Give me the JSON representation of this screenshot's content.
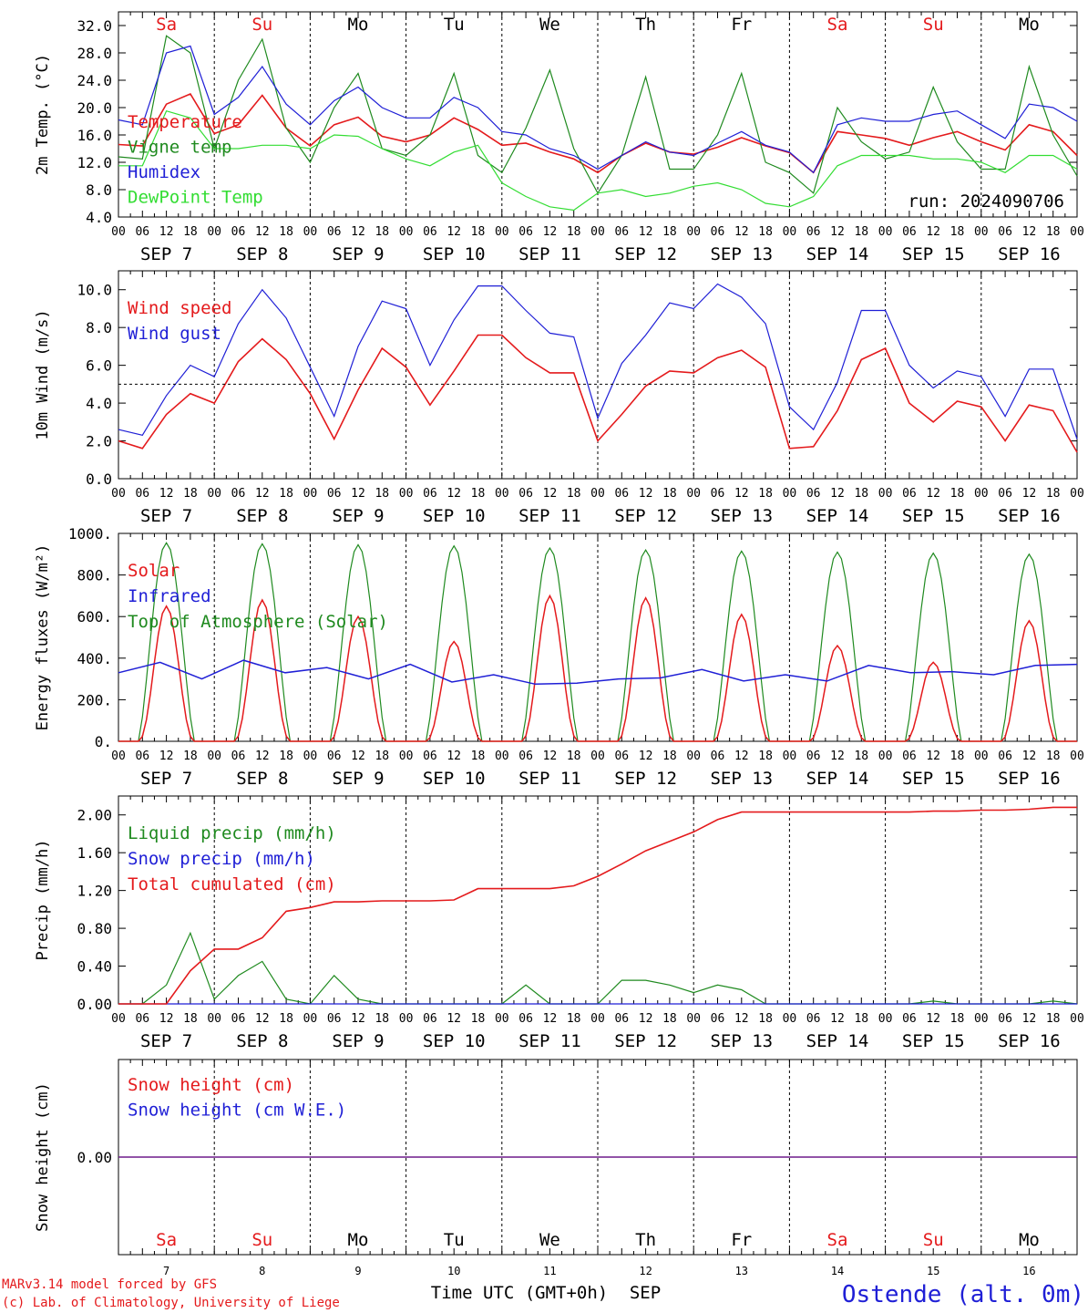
{
  "colors": {
    "red": "#e41a1c",
    "green": "#1f8a1f",
    "blue": "#1f1fd6",
    "lime": "#33dd33",
    "purple": "#8a2be2",
    "axis": "#000000"
  },
  "days": [
    "Sa",
    "Su",
    "Mo",
    "Tu",
    "We",
    "Th",
    "Fr",
    "Sa",
    "Su",
    "Mo"
  ],
  "weekend": [
    true,
    true,
    false,
    false,
    false,
    false,
    false,
    true,
    true,
    false
  ],
  "date_labels": [
    "SEP  7",
    "SEP  8",
    "SEP  9",
    "SEP 10",
    "SEP 11",
    "SEP 12",
    "SEP 13",
    "SEP 14",
    "SEP 15",
    "SEP 16"
  ],
  "day_numbers": [
    "7",
    "8",
    "9",
    "10",
    "11",
    "12",
    "13",
    "14",
    "15",
    "16"
  ],
  "hour_labels": [
    "00",
    "06",
    "12",
    "18"
  ],
  "run_label": "run: 2024090706",
  "x_title": "Time UTC (GMT+0h)",
  "month_label": "SEP",
  "credit_line1": "MARv3.14 model forced by GFS",
  "credit_line2": "(c) Lab. of Climatology, University of Liege",
  "station": "Ostende (alt. 0m)",
  "chart_data": [
    {
      "type": "line",
      "ylabel": "2m Temp. (°C)",
      "ylim": [
        4,
        34
      ],
      "yticks": [
        "32.0",
        "28.0",
        "24.0",
        "20.0",
        "16.0",
        "12.0",
        "8.0",
        "4.0"
      ],
      "x_hours": [
        0,
        6,
        12,
        18,
        24,
        30,
        36,
        42,
        48,
        54,
        60,
        66,
        72,
        78,
        84,
        90,
        96,
        102,
        108,
        114,
        120,
        126,
        132,
        138,
        144,
        150,
        156,
        162,
        168,
        174,
        180,
        186,
        192,
        198,
        204,
        210,
        216,
        222,
        228,
        234,
        240
      ],
      "series": [
        {
          "name": "Temperature",
          "color": "red",
          "values": [
            14.6,
            14.4,
            20.5,
            22.0,
            16.2,
            17.5,
            21.8,
            17.0,
            14.4,
            17.5,
            18.6,
            15.8,
            15.0,
            16.0,
            18.5,
            16.8,
            14.5,
            14.8,
            13.5,
            12.5,
            10.5,
            13.0,
            14.8,
            13.5,
            13.2,
            14.2,
            15.6,
            14.4,
            13.4,
            10.5,
            16.5,
            16.0,
            15.5,
            14.5,
            15.6,
            16.5,
            15.0,
            13.8,
            17.5,
            16.5,
            13.0
          ]
        },
        {
          "name": "Vigne temp",
          "color": "green",
          "values": [
            12.8,
            12.5,
            30.5,
            28.0,
            14.0,
            24.0,
            30.0,
            17.0,
            12.0,
            20.0,
            25.0,
            14.0,
            13.0,
            16.0,
            25.0,
            13.0,
            10.5,
            17.0,
            25.5,
            14.0,
            7.5,
            13.0,
            24.5,
            11.0,
            11.0,
            16.0,
            25.0,
            12.0,
            10.5,
            7.5,
            20.0,
            15.0,
            12.5,
            13.5,
            23.0,
            15.0,
            11.0,
            11.0,
            26.0,
            16.0,
            10.0
          ]
        },
        {
          "name": "Humidex",
          "color": "blue",
          "values": [
            18.2,
            17.5,
            28.0,
            29.0,
            19.0,
            21.5,
            26.0,
            20.5,
            17.5,
            21.0,
            23.0,
            20.0,
            18.5,
            18.5,
            21.5,
            20.0,
            16.5,
            16.0,
            14.0,
            13.0,
            11.0,
            13.0,
            15.0,
            13.5,
            13.0,
            14.8,
            16.5,
            14.5,
            13.5,
            10.5,
            17.5,
            18.5,
            18.0,
            18.0,
            19.0,
            19.5,
            17.5,
            15.5,
            20.5,
            20.0,
            18.0
          ]
        },
        {
          "name": "DewPoint Temp",
          "color": "lime",
          "values": [
            11.5,
            11.5,
            19.5,
            18.5,
            14.0,
            14.0,
            14.5,
            14.5,
            14.0,
            16.0,
            15.8,
            14.0,
            12.5,
            11.5,
            13.5,
            14.5,
            9.0,
            7.0,
            5.5,
            5.0,
            7.5,
            8.0,
            7.0,
            7.5,
            8.5,
            9.0,
            8.0,
            6.0,
            5.5,
            7.0,
            11.5,
            13.0,
            13.0,
            13.0,
            12.5,
            12.5,
            12.0,
            10.5,
            13.0,
            13.0,
            11.0
          ]
        }
      ]
    },
    {
      "type": "line",
      "ylabel": "10m Wind (m/s)",
      "ylim": [
        0,
        11
      ],
      "yticks": [
        "10.0",
        "8.0",
        "6.0",
        "4.0",
        "2.0",
        "0.0"
      ],
      "ref_line": 5,
      "x_hours": [
        0,
        6,
        12,
        18,
        24,
        30,
        36,
        42,
        48,
        54,
        60,
        66,
        72,
        78,
        84,
        90,
        96,
        102,
        108,
        114,
        120,
        126,
        132,
        138,
        144,
        150,
        156,
        162,
        168,
        174,
        180,
        186,
        192,
        198,
        204,
        210,
        216,
        222,
        228,
        234,
        240
      ],
      "series": [
        {
          "name": "Wind speed",
          "color": "red",
          "values": [
            2.0,
            1.6,
            3.4,
            4.5,
            4.0,
            6.2,
            7.4,
            6.3,
            4.5,
            2.1,
            4.7,
            6.9,
            5.9,
            3.9,
            5.7,
            7.6,
            7.6,
            6.4,
            5.6,
            5.6,
            2.0,
            3.4,
            4.9,
            5.7,
            5.6,
            6.4,
            6.8,
            5.9,
            1.6,
            1.7,
            3.6,
            6.3,
            6.9,
            4.0,
            3.0,
            4.1,
            3.8,
            2.0,
            3.9,
            3.6,
            1.4
          ]
        },
        {
          "name": "Wind gust",
          "color": "blue",
          "values": [
            2.6,
            2.3,
            4.4,
            6.0,
            5.4,
            8.2,
            10.0,
            8.5,
            5.9,
            3.3,
            7.0,
            9.4,
            9.0,
            6.0,
            8.4,
            10.2,
            10.2,
            8.9,
            7.7,
            7.5,
            3.2,
            6.1,
            7.6,
            9.3,
            9.0,
            10.3,
            9.6,
            8.2,
            3.8,
            2.6,
            5.1,
            8.9,
            8.9,
            6.0,
            4.8,
            5.7,
            5.4,
            3.3,
            5.8,
            5.8,
            2.1
          ]
        }
      ]
    },
    {
      "type": "line",
      "ylabel": "Energy fluxes (W/m²)",
      "ylim": [
        0,
        1000
      ],
      "yticks": [
        "1000.",
        "800.",
        "600.",
        "400.",
        "200.",
        "0."
      ],
      "sunrise_hour": 5,
      "sunset_hour": 19,
      "toa_peaks": [
        955,
        950,
        945,
        940,
        930,
        920,
        915,
        910,
        905,
        900
      ],
      "solar_peaks": [
        650,
        680,
        600,
        480,
        700,
        690,
        610,
        460,
        380,
        580
      ],
      "infrared": [
        330,
        380,
        300,
        390,
        330,
        355,
        300,
        370,
        285,
        320,
        275,
        280,
        300,
        305,
        345,
        290,
        320,
        290,
        365,
        330,
        335,
        320,
        365,
        370
      ],
      "series": [
        {
          "name": "Solar",
          "color": "red"
        },
        {
          "name": "Infrared",
          "color": "blue"
        },
        {
          "name": "Top of Atmosphere (Solar)",
          "color": "green"
        }
      ]
    },
    {
      "type": "line",
      "ylabel": "Precip (mm/h)",
      "ylim": [
        0,
        2.2
      ],
      "yticks": [
        "2.00",
        "1.60",
        "1.20",
        "0.80",
        "0.40",
        "0.00"
      ],
      "x_hours": [
        0,
        6,
        12,
        18,
        24,
        30,
        36,
        42,
        48,
        54,
        60,
        66,
        72,
        78,
        84,
        90,
        96,
        102,
        108,
        114,
        120,
        126,
        132,
        138,
        144,
        150,
        156,
        162,
        168,
        174,
        180,
        186,
        192,
        198,
        204,
        210,
        216,
        222,
        228,
        234,
        240
      ],
      "series": [
        {
          "name": "Liquid precip (mm/h)",
          "color": "green",
          "values": [
            0,
            0,
            0.2,
            0.75,
            0.05,
            0.3,
            0.45,
            0.05,
            0,
            0.3,
            0.05,
            0,
            0,
            0,
            0,
            0,
            0,
            0.2,
            0,
            0,
            0,
            0.25,
            0.25,
            0.2,
            0.12,
            0.2,
            0.15,
            0,
            0,
            0,
            0,
            0,
            0,
            0,
            0.03,
            0,
            0,
            0,
            0,
            0.03,
            0
          ]
        },
        {
          "name": "Snow precip (mm/h)",
          "color": "blue",
          "values": [
            0,
            0,
            0,
            0,
            0,
            0,
            0,
            0,
            0,
            0,
            0,
            0,
            0,
            0,
            0,
            0,
            0,
            0,
            0,
            0,
            0,
            0,
            0,
            0,
            0,
            0,
            0,
            0,
            0,
            0,
            0,
            0,
            0,
            0,
            0,
            0,
            0,
            0,
            0,
            0,
            0
          ]
        },
        {
          "name": "Total cumulated (cm)",
          "color": "red",
          "values": [
            0,
            0,
            0,
            0.35,
            0.58,
            0.58,
            0.7,
            0.98,
            1.02,
            1.08,
            1.08,
            1.09,
            1.09,
            1.09,
            1.1,
            1.22,
            1.22,
            1.22,
            1.22,
            1.25,
            1.35,
            1.48,
            1.62,
            1.72,
            1.82,
            1.95,
            2.03,
            2.03,
            2.03,
            2.03,
            2.03,
            2.03,
            2.03,
            2.03,
            2.04,
            2.04,
            2.05,
            2.05,
            2.06,
            2.08,
            2.08
          ]
        }
      ]
    },
    {
      "type": "line",
      "ylabel": "Snow height (cm)",
      "ylim": [
        -1,
        1
      ],
      "yticks": [
        "0.00"
      ],
      "series": [
        {
          "name": "Snow height (cm)",
          "color": "red",
          "values": [
            0,
            0
          ]
        },
        {
          "name": "Snow height (cm W.E.)",
          "color": "blue",
          "values": [
            0,
            0
          ]
        }
      ]
    }
  ]
}
